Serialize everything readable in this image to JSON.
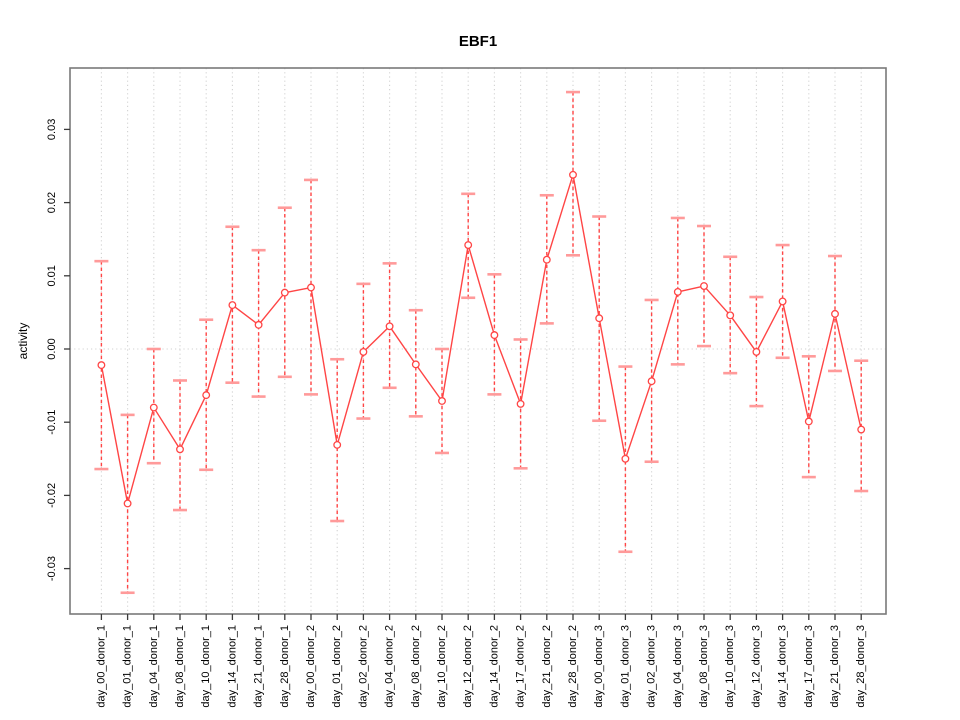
{
  "title": "EBF1",
  "chart_data": {
    "type": "line",
    "title": "EBF1",
    "xlabel": "",
    "ylabel": "activity",
    "ylim": [
      -0.035,
      0.036
    ],
    "yticks": [
      -0.03,
      -0.02,
      -0.01,
      0.0,
      0.01,
      0.02,
      0.03
    ],
    "ytick_labels": [
      "-0.03",
      "-0.02",
      "-0.01",
      "0.00",
      "0.01",
      "0.02",
      "0.03"
    ],
    "grid": "vertical dotted gridline at every category; horizontal dotted line at y=0",
    "legend_position": "none",
    "marker": "open-circle",
    "error_bars": "dashed vertical line with horizontal caps",
    "categories": [
      "day_00_donor_1",
      "day_01_donor_1",
      "day_04_donor_1",
      "day_08_donor_1",
      "day_10_donor_1",
      "day_14_donor_1",
      "day_21_donor_1",
      "day_28_donor_1",
      "day_00_donor_2",
      "day_01_donor_2",
      "day_02_donor_2",
      "day_04_donor_2",
      "day_08_donor_2",
      "day_10_donor_2",
      "day_12_donor_2",
      "day_14_donor_2",
      "day_17_donor_2",
      "day_21_donor_2",
      "day_28_donor_2",
      "day_00_donor_3",
      "day_01_donor_3",
      "day_02_donor_3",
      "day_04_donor_3",
      "day_08_donor_3",
      "day_10_donor_3",
      "day_12_donor_3",
      "day_14_donor_3",
      "day_17_donor_3",
      "day_21_donor_3",
      "day_28_donor_3"
    ],
    "series": [
      {
        "name": "activity",
        "values": [
          -0.0022,
          -0.0211,
          -0.008,
          -0.0137,
          -0.0063,
          0.006,
          0.0033,
          0.0077,
          0.0084,
          -0.0131,
          -0.0004,
          0.0031,
          -0.0021,
          -0.0071,
          0.0142,
          0.0019,
          -0.0075,
          0.0122,
          0.0238,
          0.0042,
          -0.015,
          -0.0044,
          0.0078,
          0.0086,
          0.0046,
          -0.0004,
          0.0065,
          -0.0099,
          0.0048,
          -0.011
        ],
        "error_low": [
          -0.0164,
          -0.0333,
          -0.0156,
          -0.022,
          -0.0165,
          -0.0046,
          -0.0065,
          -0.0038,
          -0.0062,
          -0.0235,
          -0.0095,
          -0.0053,
          -0.0092,
          -0.0142,
          0.007,
          -0.0062,
          -0.0163,
          0.0035,
          0.0128,
          -0.0098,
          -0.0277,
          -0.0154,
          -0.0021,
          0.0004,
          -0.0033,
          -0.0078,
          -0.0012,
          -0.0175,
          -0.003,
          -0.0194
        ],
        "error_high": [
          0.012,
          -0.009,
          0.0,
          -0.0043,
          0.004,
          0.0167,
          0.0135,
          0.0193,
          0.0231,
          -0.0014,
          0.0089,
          0.0117,
          0.0053,
          0.0,
          0.0212,
          0.0102,
          0.0013,
          0.021,
          0.0351,
          0.0181,
          -0.0024,
          0.0067,
          0.0179,
          0.0168,
          0.0126,
          0.0071,
          0.0142,
          -0.001,
          0.0127,
          -0.0016
        ]
      }
    ],
    "colors": {
      "series": "#ff4545",
      "error_cap": "#ff9a9a",
      "marker_fill": "#ffffff",
      "grid": "#d2d2d2",
      "plot_border": "#7a7a7a",
      "tick": "#3a3a3a",
      "text": "#000000",
      "background": "#ffffff"
    }
  }
}
